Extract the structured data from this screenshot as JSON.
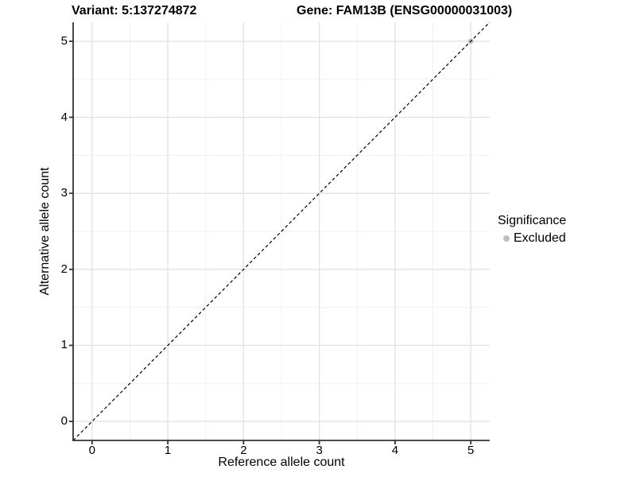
{
  "header": {
    "variant_title": "Variant: 5:137274872",
    "gene_title": "Gene: FAM13B (ENSG00000031003)"
  },
  "chart_data": {
    "type": "scatter",
    "title_left": "Variant: 5:137274872",
    "title_right": "Gene: FAM13B (ENSG00000031003)",
    "xlabel": "Reference allele count",
    "ylabel": "Alternative allele count",
    "xlim": [
      -0.25,
      5.25
    ],
    "ylim": [
      -0.25,
      5.25
    ],
    "x_ticks": [
      0,
      1,
      2,
      3,
      4,
      5
    ],
    "y_ticks": [
      0,
      1,
      2,
      3,
      4,
      5
    ],
    "minor_ticks": [
      0.5,
      1.5,
      2.5,
      3.5,
      4.5
    ],
    "grid": {
      "major_color": "#e3e3e3",
      "minor_color": "#f0f0f0",
      "background": "#ffffff"
    },
    "axis_color": "#333333",
    "reference_line": {
      "type": "identity",
      "slope": 1,
      "intercept": 0,
      "style": "dashed",
      "color": "#000000"
    },
    "series": [
      {
        "name": "Excluded",
        "color": "#bebebe",
        "points": [
          {
            "x": 5,
            "y": 5
          }
        ]
      }
    ],
    "legend": {
      "title": "Significance",
      "position": "right",
      "entries": [
        {
          "label": "Excluded",
          "color": "#bebebe"
        }
      ]
    }
  }
}
